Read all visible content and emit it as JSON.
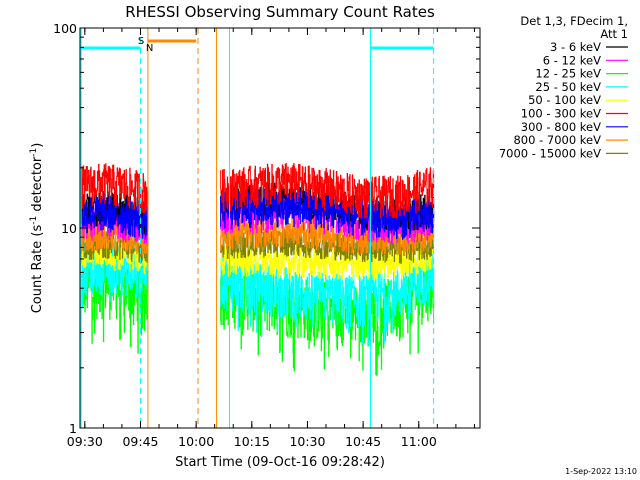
{
  "chart_data": {
    "type": "line",
    "title": "RHESSI Observing Summary Count Rates",
    "xlabel": "Start Time (09-Oct-16 09:28:42)",
    "ylabel_main": "Count Rate (s",
    "ylabel_sup1": "-1",
    "ylabel_mid": " detector",
    "ylabel_sup2": "-1",
    "ylabel_end": ")",
    "yscale": "log",
    "ylim": [
      1,
      100
    ],
    "xlim": [
      "09:28:42",
      "11:16:30"
    ],
    "x_ticks": [
      {
        "t": "09:30",
        "label": "09:30"
      },
      {
        "t": "09:45",
        "label": "09:45"
      },
      {
        "t": "10:00",
        "label": "10:00"
      },
      {
        "t": "10:15",
        "label": "10:15"
      },
      {
        "t": "10:30",
        "label": "10:30"
      },
      {
        "t": "10:45",
        "label": "10:45"
      },
      {
        "t": "11:00",
        "label": "11:00"
      }
    ],
    "y_ticks": [
      {
        "v": 1,
        "label": "1"
      },
      {
        "v": 10,
        "label": "10"
      },
      {
        "v": 100,
        "label": "100"
      }
    ],
    "legend": {
      "header_lines": [
        "Det 1,3, FDecim 1,",
        "Att 1"
      ],
      "placement": "right, outside plot"
    },
    "data_gap": [
      "09:47:00",
      "10:06:30"
    ],
    "series": [
      {
        "name": "3 - 6 keV",
        "color": "#000000",
        "values": [
          [
            [
              "09:29:00",
              12.3
            ],
            [
              "09:35:00",
              12.8
            ],
            [
              "09:40:00",
              12.4
            ],
            [
              "09:45:00",
              11.8
            ],
            [
              "09:47:00",
              11.5
            ]
          ],
          [
            [
              "10:06:30",
              13.2
            ],
            [
              "10:15:00",
              13.8
            ],
            [
              "10:25:00",
              14.2
            ],
            [
              "10:35:00",
              13.5
            ],
            [
              "10:45:00",
              12.2
            ],
            [
              "10:55:00",
              11.8
            ],
            [
              "11:04:00",
              12.5
            ]
          ]
        ]
      },
      {
        "name": "6 - 12 keV",
        "color": "#ff00ff",
        "values": [
          [
            [
              "09:29:00",
              11.0
            ],
            [
              "09:35:00",
              11.3
            ],
            [
              "09:40:00",
              11.0
            ],
            [
              "09:45:00",
              10.7
            ],
            [
              "09:47:00",
              10.5
            ]
          ],
          [
            [
              "10:06:30",
              11.8
            ],
            [
              "10:15:00",
              12.0
            ],
            [
              "10:25:00",
              12.4
            ],
            [
              "10:35:00",
              11.8
            ],
            [
              "10:45:00",
              11.0
            ],
            [
              "10:55:00",
              10.6
            ],
            [
              "11:04:00",
              11.2
            ]
          ]
        ]
      },
      {
        "name": "12 - 25 keV",
        "color": "#00ff00",
        "values": [
          [
            [
              "09:29:00",
              5.2
            ],
            [
              "09:35:00",
              5.4
            ],
            [
              "09:40:00",
              5.2
            ],
            [
              "09:45:00",
              5.0
            ],
            [
              "09:47:00",
              4.9
            ]
          ],
          [
            [
              "10:06:30",
              5.0
            ],
            [
              "10:15:00",
              4.6
            ],
            [
              "10:25:00",
              4.3
            ],
            [
              "10:35:00",
              4.0
            ],
            [
              "10:45:00",
              3.9
            ],
            [
              "10:55:00",
              4.2
            ],
            [
              "11:04:00",
              5.5
            ]
          ]
        ]
      },
      {
        "name": "25 - 50 keV",
        "color": "#00ffff",
        "values": [
          [
            [
              "09:29:00",
              6.5
            ],
            [
              "09:35:00",
              6.7
            ],
            [
              "09:40:00",
              6.5
            ],
            [
              "09:45:00",
              6.3
            ],
            [
              "09:47:00",
              6.2
            ]
          ],
          [
            [
              "10:06:30",
              5.6
            ],
            [
              "10:15:00",
              5.2
            ],
            [
              "10:25:00",
              4.9
            ],
            [
              "10:35:00",
              4.6
            ],
            [
              "10:45:00",
              4.5
            ],
            [
              "10:55:00",
              4.9
            ],
            [
              "11:04:00",
              6.3
            ]
          ]
        ]
      },
      {
        "name": "50 - 100 keV",
        "color": "#ffff00",
        "values": [
          [
            [
              "09:29:00",
              7.4
            ],
            [
              "09:35:00",
              7.6
            ],
            [
              "09:40:00",
              7.4
            ],
            [
              "09:45:00",
              7.2
            ],
            [
              "09:47:00",
              7.1
            ]
          ],
          [
            [
              "10:06:30",
              7.0
            ],
            [
              "10:15:00",
              6.9
            ],
            [
              "10:25:00",
              6.8
            ],
            [
              "10:35:00",
              6.7
            ],
            [
              "10:45:00",
              6.6
            ],
            [
              "10:55:00",
              6.8
            ],
            [
              "11:04:00",
              7.3
            ]
          ]
        ]
      },
      {
        "name": "100 - 300 keV",
        "color": "#ff0000",
        "values": [
          [
            [
              "09:29:00",
              16.5
            ],
            [
              "09:35:00",
              17.0
            ],
            [
              "09:40:00",
              16.5
            ],
            [
              "09:45:00",
              15.5
            ],
            [
              "09:47:00",
              15.2
            ]
          ],
          [
            [
              "10:06:30",
              15.8
            ],
            [
              "10:15:00",
              16.5
            ],
            [
              "10:25:00",
              17.2
            ],
            [
              "10:35:00",
              16.0
            ],
            [
              "10:45:00",
              14.5
            ],
            [
              "10:55:00",
              14.8
            ],
            [
              "11:04:00",
              16.5
            ]
          ]
        ]
      },
      {
        "name": "300 - 800 keV",
        "color": "#0000ff",
        "values": [
          [
            [
              "09:29:00",
              11.8
            ],
            [
              "09:35:00",
              12.2
            ],
            [
              "09:40:00",
              11.8
            ],
            [
              "09:45:00",
              11.2
            ],
            [
              "09:47:00",
              11.0
            ]
          ],
          [
            [
              "10:06:30",
              12.4
            ],
            [
              "10:15:00",
              12.8
            ],
            [
              "10:25:00",
              13.0
            ],
            [
              "10:35:00",
              12.4
            ],
            [
              "10:45:00",
              11.5
            ],
            [
              "10:55:00",
              11.2
            ],
            [
              "11:04:00",
              11.8
            ]
          ]
        ]
      },
      {
        "name": "800 - 7000 keV",
        "color": "#ff8800",
        "values": [
          [
            [
              "09:29:00",
              9.2
            ],
            [
              "09:35:00",
              9.5
            ],
            [
              "09:40:00",
              9.2
            ],
            [
              "09:45:00",
              8.9
            ],
            [
              "09:47:00",
              8.8
            ]
          ],
          [
            [
              "10:06:30",
              9.4
            ],
            [
              "10:15:00",
              9.6
            ],
            [
              "10:25:00",
              9.8
            ],
            [
              "10:35:00",
              9.4
            ],
            [
              "10:45:00",
              9.0
            ],
            [
              "10:55:00",
              8.9
            ],
            [
              "11:04:00",
              9.3
            ]
          ]
        ]
      },
      {
        "name": "7000 - 15000 keV",
        "color": "#808000",
        "values": [
          [
            [
              "09:29:00",
              8.2
            ],
            [
              "09:35:00",
              8.4
            ],
            [
              "09:40:00",
              8.2
            ],
            [
              "09:45:00",
              8.0
            ],
            [
              "09:47:00",
              7.9
            ]
          ],
          [
            [
              "10:06:30",
              8.3
            ],
            [
              "10:15:00",
              8.4
            ],
            [
              "10:25:00",
              8.6
            ],
            [
              "10:35:00",
              8.3
            ],
            [
              "10:45:00",
              8.0
            ],
            [
              "10:55:00",
              7.9
            ],
            [
              "11:04:00",
              8.2
            ]
          ]
        ]
      }
    ],
    "flags": {
      "saa": {
        "label": "S",
        "color": "#ff8800",
        "intervals": [
          [
            "09:47:00",
            "10:00:00"
          ]
        ]
      },
      "night": {
        "label": "N",
        "color": "#00ffff",
        "intervals": [
          [
            "09:29:00",
            "09:45:00"
          ],
          [
            "10:47:00",
            "11:04:00"
          ]
        ]
      }
    },
    "markers": [
      {
        "t": "09:29:00",
        "color": "#00ffff",
        "style": "solid"
      },
      {
        "t": "09:45:00",
        "color": "#00ffff",
        "style": "dashed"
      },
      {
        "t": "09:47:00",
        "color": "#ff8800",
        "style": "solid"
      },
      {
        "t": "10:00:30",
        "color": "#ff8800",
        "style": "dashed"
      },
      {
        "t": "10:05:30",
        "color": "#ff8800",
        "style": "solid"
      },
      {
        "t": "10:09:00",
        "color": "#00ffff",
        "style": "solid"
      },
      {
        "t": "10:47:00",
        "color": "#00ffff",
        "style": "solid"
      },
      {
        "t": "11:04:00",
        "color": "#00ffff",
        "style": "dashed"
      }
    ]
  },
  "footer": {
    "timestamp": "1-Sep-2022 13:10"
  }
}
